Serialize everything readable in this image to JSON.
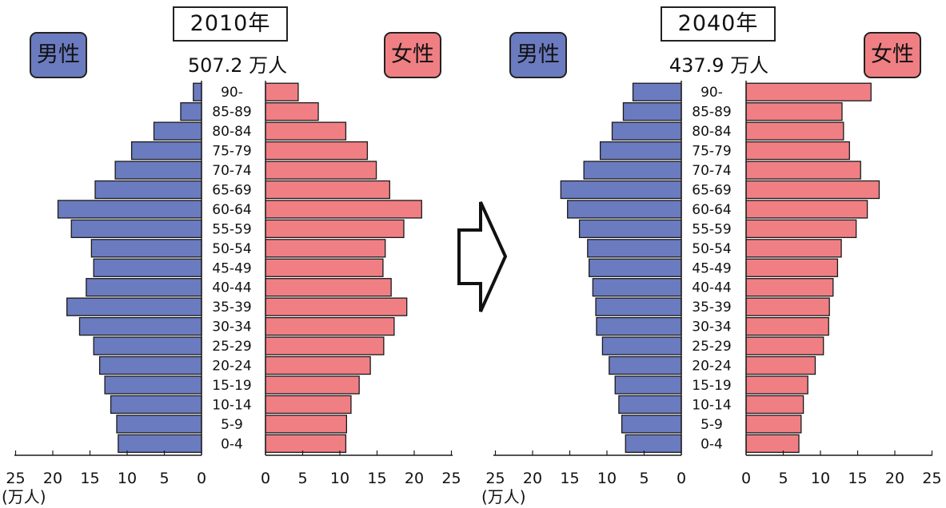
{
  "colors": {
    "male": "#6b7bbf",
    "female": "#f07f84",
    "stroke": "#1a1a1a"
  },
  "age_groups": [
    "0-4",
    "5-9",
    "10-14",
    "15-19",
    "20-24",
    "25-29",
    "30-34",
    "35-39",
    "40-44",
    "45-49",
    "50-54",
    "55-59",
    "60-64",
    "65-69",
    "70-74",
    "75-79",
    "80-84",
    "85-89",
    "90-"
  ],
  "panels": [
    {
      "year": "2010年",
      "total": "507.2 万人",
      "male_label": "男性",
      "female_label": "女性"
    },
    {
      "year": "2040年",
      "total": "437.9 万人",
      "male_label": "男性",
      "female_label": "女性"
    }
  ],
  "axis_ticks_male": [
    "25",
    "20",
    "15",
    "10",
    "5",
    "0"
  ],
  "axis_ticks_female": [
    "0",
    "5",
    "10",
    "15",
    "20",
    "25"
  ],
  "unit_label": "(万人)",
  "chart_data": [
    {
      "type": "bar",
      "title": "2010年",
      "subtitle": "507.2 万人",
      "categories": [
        "0-4",
        "5-9",
        "10-14",
        "15-19",
        "20-24",
        "25-29",
        "30-34",
        "35-39",
        "40-44",
        "45-49",
        "50-54",
        "55-59",
        "60-64",
        "65-69",
        "70-74",
        "75-79",
        "80-84",
        "85-89",
        "90-"
      ],
      "series": [
        {
          "name": "男性",
          "values": [
            11.2,
            11.4,
            12.2,
            13.0,
            13.7,
            14.5,
            16.4,
            18.1,
            15.5,
            14.5,
            14.8,
            17.5,
            19.3,
            14.3,
            11.6,
            9.4,
            6.4,
            2.8,
            1.1
          ]
        },
        {
          "name": "女性",
          "values": [
            10.8,
            10.9,
            11.5,
            12.6,
            14.1,
            15.9,
            17.3,
            19.0,
            16.9,
            15.8,
            16.1,
            18.6,
            21.0,
            16.7,
            14.9,
            13.7,
            10.8,
            7.1,
            4.4
          ]
        }
      ],
      "xlim": [
        0,
        25
      ],
      "xlabel": "(万人)"
    },
    {
      "type": "bar",
      "title": "2040年",
      "subtitle": "437.9 万人",
      "categories": [
        "0-4",
        "5-9",
        "10-14",
        "15-19",
        "20-24",
        "25-29",
        "30-34",
        "35-39",
        "40-44",
        "45-49",
        "50-54",
        "55-59",
        "60-64",
        "65-69",
        "70-74",
        "75-79",
        "80-84",
        "85-89",
        "90-"
      ],
      "series": [
        {
          "name": "男性",
          "values": [
            7.5,
            8.0,
            8.4,
            8.9,
            9.7,
            10.6,
            11.4,
            11.5,
            11.9,
            12.4,
            12.6,
            13.7,
            15.3,
            16.2,
            13.1,
            10.9,
            9.3,
            7.8,
            6.5
          ]
        },
        {
          "name": "女性",
          "values": [
            7.1,
            7.4,
            7.7,
            8.3,
            9.3,
            10.4,
            11.1,
            11.2,
            11.7,
            12.3,
            12.8,
            14.8,
            16.3,
            17.9,
            15.4,
            13.9,
            13.1,
            12.9,
            16.8
          ]
        }
      ],
      "xlim": [
        0,
        25
      ],
      "xlabel": "(万人)"
    }
  ]
}
